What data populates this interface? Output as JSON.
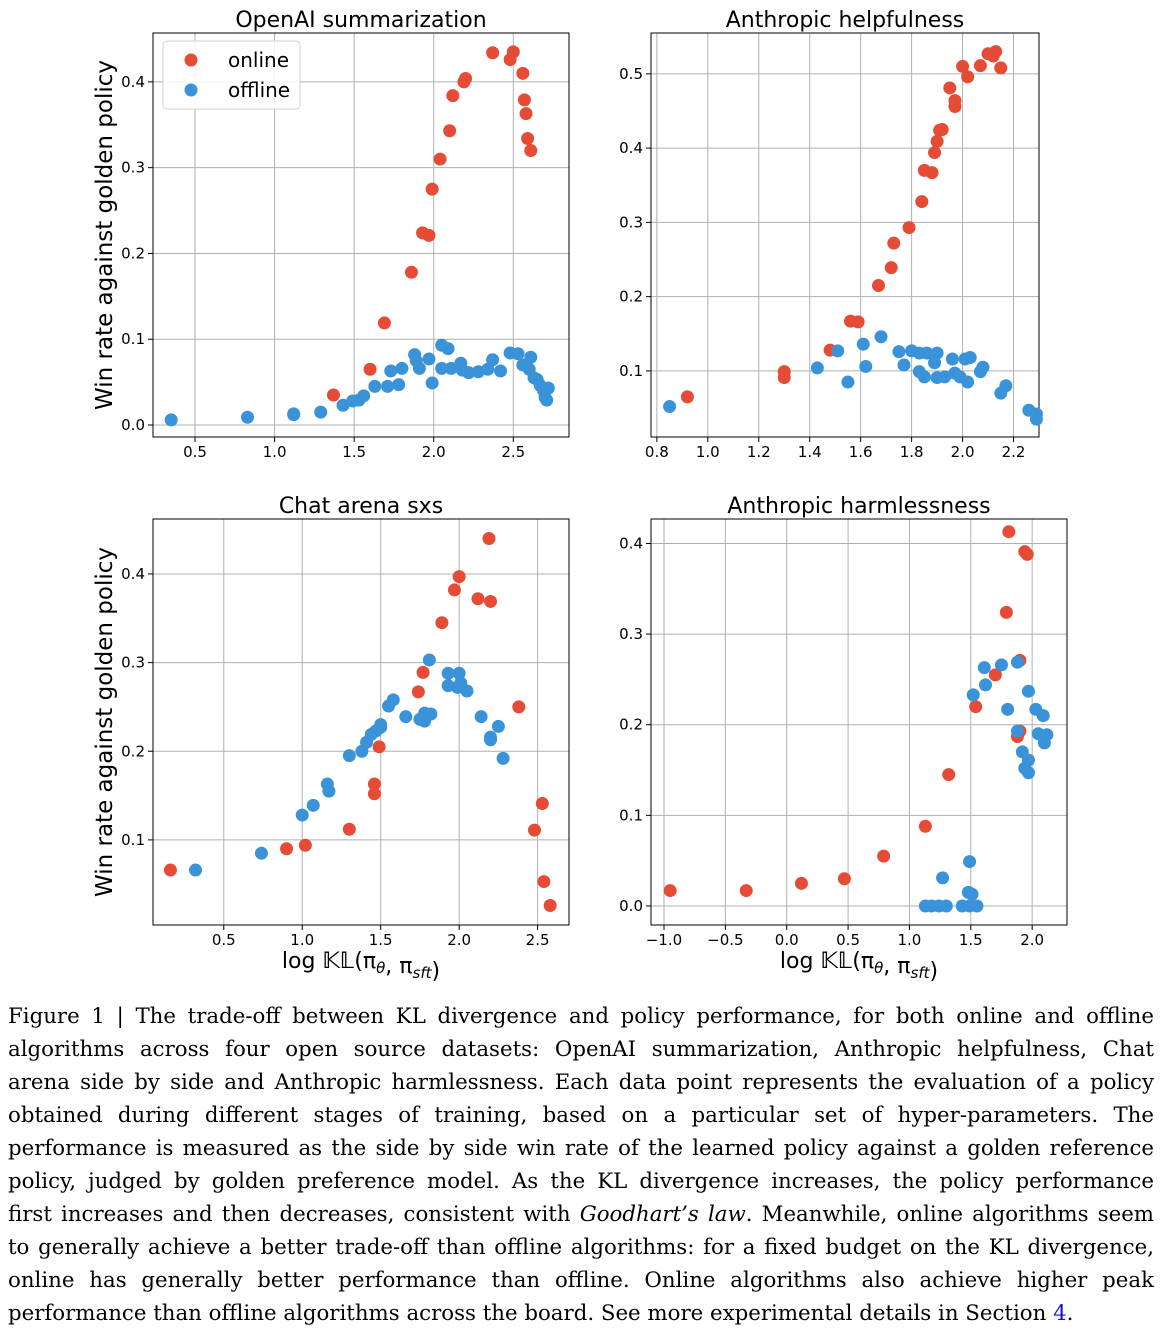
{
  "colors": {
    "online": "#e64b35",
    "offline": "#3a93d8",
    "grid": "#b0b0b0"
  },
  "legend": {
    "online": "online",
    "offline": "offline"
  },
  "chart_data": [
    {
      "type": "scatter",
      "title": "OpenAI summarization",
      "xlabel": "",
      "ylabel": "Win rate against golden policy",
      "xlim": [
        0.236,
        2.85
      ],
      "ylim": [
        -0.014,
        0.457
      ],
      "xticks": [
        0.5,
        1.0,
        1.5,
        2.0,
        2.5
      ],
      "yticks": [
        0.0,
        0.1,
        0.2,
        0.3,
        0.4
      ],
      "xtick_labels": [
        "0.5",
        "1.0",
        "1.5",
        "2.0",
        "2.5"
      ],
      "ytick_labels": [
        "0.0",
        "0.1",
        "0.2",
        "0.3",
        "0.4"
      ],
      "grid": true,
      "legend": "top-left",
      "series": [
        {
          "name": "online",
          "x": [
            1.37,
            1.6,
            1.69,
            1.86,
            1.93,
            1.97,
            1.99,
            2.04,
            2.1,
            2.12,
            2.19,
            2.2,
            2.37,
            2.48,
            2.5,
            2.56,
            2.57,
            2.58,
            2.59,
            2.61
          ],
          "y": [
            0.035,
            0.065,
            0.119,
            0.178,
            0.224,
            0.221,
            0.275,
            0.31,
            0.343,
            0.384,
            0.4,
            0.404,
            0.434,
            0.426,
            0.435,
            0.41,
            0.379,
            0.363,
            0.334,
            0.32
          ]
        },
        {
          "name": "offline",
          "x": [
            0.35,
            0.83,
            1.12,
            1.12,
            1.29,
            1.43,
            1.49,
            1.53,
            1.56,
            1.63,
            1.71,
            1.73,
            1.78,
            1.8,
            1.88,
            1.89,
            1.91,
            1.97,
            1.99,
            2.05,
            2.09,
            2.05,
            2.11,
            2.17,
            2.18,
            2.22,
            2.28,
            2.34,
            2.37,
            2.42,
            2.48,
            2.53,
            2.56,
            2.6,
            2.61,
            2.63,
            2.65,
            2.67,
            2.69,
            2.7,
            2.72,
            2.71
          ],
          "y": [
            0.006,
            0.009,
            0.013,
            0.012,
            0.015,
            0.023,
            0.028,
            0.029,
            0.034,
            0.045,
            0.045,
            0.063,
            0.047,
            0.066,
            0.082,
            0.075,
            0.066,
            0.077,
            0.049,
            0.093,
            0.089,
            0.066,
            0.066,
            0.072,
            0.064,
            0.061,
            0.062,
            0.065,
            0.076,
            0.063,
            0.084,
            0.083,
            0.07,
            0.065,
            0.079,
            0.055,
            0.053,
            0.046,
            0.04,
            0.032,
            0.043,
            0.029
          ]
        }
      ]
    },
    {
      "type": "scatter",
      "title": "Anthropic helpfulness",
      "xlabel": "",
      "ylabel": "",
      "xlim": [
        0.777,
        2.3
      ],
      "ylim": [
        0.011,
        0.555
      ],
      "xticks": [
        0.8,
        1.0,
        1.2,
        1.4,
        1.6,
        1.8,
        2.0,
        2.2
      ],
      "yticks": [
        0.1,
        0.2,
        0.3,
        0.4,
        0.5
      ],
      "xtick_labels": [
        "0.8",
        "1.0",
        "1.2",
        "1.4",
        "1.6",
        "1.8",
        "2.0",
        "2.2"
      ],
      "ytick_labels": [
        "0.1",
        "0.2",
        "0.3",
        "0.4",
        "0.5"
      ],
      "grid": true,
      "series": [
        {
          "name": "online",
          "x": [
            0.92,
            1.3,
            1.3,
            1.48,
            1.56,
            1.59,
            1.67,
            1.72,
            1.73,
            1.79,
            1.84,
            1.85,
            1.88,
            1.89,
            1.9,
            1.91,
            1.92,
            1.95,
            1.97,
            1.97,
            2.0,
            2.02,
            2.07,
            2.1,
            2.12,
            2.13,
            2.15
          ],
          "y": [
            0.065,
            0.099,
            0.091,
            0.128,
            0.167,
            0.166,
            0.215,
            0.239,
            0.272,
            0.293,
            0.328,
            0.37,
            0.367,
            0.394,
            0.409,
            0.424,
            0.425,
            0.481,
            0.464,
            0.456,
            0.51,
            0.496,
            0.511,
            0.527,
            0.524,
            0.53,
            0.508
          ]
        },
        {
          "name": "offline",
          "x": [
            0.85,
            1.43,
            1.51,
            1.55,
            1.61,
            1.62,
            1.68,
            1.75,
            1.77,
            1.8,
            1.83,
            1.83,
            1.85,
            1.86,
            1.9,
            1.89,
            1.9,
            1.93,
            1.96,
            1.97,
            1.99,
            2.01,
            2.03,
            2.02,
            2.07,
            2.08,
            2.15,
            2.17,
            2.26,
            2.29,
            2.29
          ],
          "y": [
            0.052,
            0.104,
            0.127,
            0.085,
            0.136,
            0.106,
            0.146,
            0.126,
            0.108,
            0.127,
            0.124,
            0.099,
            0.092,
            0.124,
            0.124,
            0.111,
            0.091,
            0.092,
            0.116,
            0.097,
            0.092,
            0.116,
            0.118,
            0.085,
            0.099,
            0.105,
            0.07,
            0.08,
            0.047,
            0.042,
            0.035
          ]
        }
      ]
    },
    {
      "type": "scatter",
      "title": "Chat arena sxs",
      "xlabel": "log 𝕂𝕃(π_θ, π_sft)",
      "ylabel": "Win rate against golden policy",
      "xlim": [
        0.049,
        2.7
      ],
      "ylim": [
        0.004,
        0.462
      ],
      "xticks": [
        0.5,
        1.0,
        1.5,
        2.0,
        2.5
      ],
      "yticks": [
        0.1,
        0.2,
        0.3,
        0.4
      ],
      "xtick_labels": [
        "0.5",
        "1.0",
        "1.5",
        "2.0",
        "2.5"
      ],
      "ytick_labels": [
        "0.1",
        "0.2",
        "0.3",
        "0.4"
      ],
      "grid": true,
      "series": [
        {
          "name": "online",
          "x": [
            0.16,
            0.9,
            1.02,
            1.3,
            1.46,
            1.46,
            1.49,
            1.74,
            1.77,
            1.89,
            1.97,
            2.0,
            2.12,
            2.2,
            2.19,
            2.38,
            2.53,
            2.48,
            2.54,
            2.58
          ],
          "y": [
            0.066,
            0.09,
            0.094,
            0.112,
            0.152,
            0.163,
            0.205,
            0.267,
            0.289,
            0.345,
            0.382,
            0.397,
            0.372,
            0.369,
            0.44,
            0.25,
            0.141,
            0.111,
            0.053,
            0.026
          ]
        },
        {
          "name": "offline",
          "x": [
            0.32,
            0.74,
            1.0,
            1.07,
            1.16,
            1.17,
            1.3,
            1.38,
            1.41,
            1.44,
            1.47,
            1.5,
            1.5,
            1.55,
            1.58,
            1.66,
            1.75,
            1.78,
            1.78,
            1.82,
            1.81,
            1.93,
            1.93,
            1.99,
            2.0,
            2.01,
            2.05,
            2.14,
            2.2,
            2.2,
            2.25,
            2.28
          ],
          "y": [
            0.066,
            0.085,
            0.128,
            0.139,
            0.163,
            0.155,
            0.195,
            0.2,
            0.21,
            0.219,
            0.223,
            0.227,
            0.23,
            0.251,
            0.258,
            0.239,
            0.236,
            0.243,
            0.234,
            0.242,
            0.303,
            0.288,
            0.274,
            0.272,
            0.288,
            0.277,
            0.268,
            0.239,
            0.216,
            0.213,
            0.228,
            0.192
          ]
        }
      ]
    },
    {
      "type": "scatter",
      "title": "Anthropic harmlessness",
      "xlabel": "log 𝕂𝕃(π_θ, π_sft)",
      "ylabel": "",
      "xlim": [
        -1.106,
        2.284
      ],
      "ylim": [
        -0.021,
        0.427
      ],
      "xticks": [
        -1.0,
        -0.5,
        0.0,
        0.5,
        1.0,
        1.5,
        2.0
      ],
      "yticks": [
        0.0,
        0.1,
        0.2,
        0.3,
        0.4
      ],
      "xtick_labels": [
        "−1.0",
        "−0.5",
        "0.0",
        "0.5",
        "1.0",
        "1.5",
        "2.0"
      ],
      "ytick_labels": [
        "0.0",
        "0.1",
        "0.2",
        "0.3",
        "0.4"
      ],
      "grid": true,
      "series": [
        {
          "name": "online",
          "x": [
            -0.95,
            -0.33,
            0.12,
            0.47,
            0.79,
            1.13,
            1.32,
            1.54,
            1.7,
            1.79,
            1.81,
            1.9,
            1.94,
            1.96,
            1.9,
            1.88
          ],
          "y": [
            0.017,
            0.017,
            0.025,
            0.03,
            0.055,
            0.088,
            0.145,
            0.22,
            0.255,
            0.324,
            0.413,
            0.271,
            0.391,
            0.388,
            0.193,
            0.187
          ]
        },
        {
          "name": "offline",
          "x": [
            1.49,
            1.27,
            1.13,
            1.18,
            1.24,
            1.3,
            1.43,
            1.48,
            1.51,
            1.49,
            1.55,
            1.52,
            1.61,
            1.62,
            1.75,
            1.8,
            1.88,
            1.97,
            1.88,
            1.92,
            1.94,
            1.97,
            1.97,
            2.03,
            2.09,
            2.05,
            2.12,
            2.1
          ],
          "y": [
            0.049,
            0.031,
            0.0,
            0.0,
            0.0,
            0.0,
            0.0,
            0.015,
            0.013,
            0.0,
            0.0,
            0.233,
            0.263,
            0.244,
            0.266,
            0.217,
            0.269,
            0.237,
            0.193,
            0.17,
            0.152,
            0.161,
            0.147,
            0.217,
            0.21,
            0.19,
            0.189,
            0.18
          ]
        }
      ]
    }
  ],
  "caption": {
    "lines": [
      [
        "Figure 1 | The trade-off between KL divergence and policy performance, for both online and offline"
      ],
      [
        "algorithms across four open source datasets: OpenAI summarization, Anthropic helpfulness, Chat"
      ],
      [
        "arena side by side and Anthropic harmlessness. Each data point represents the evaluation of a policy"
      ],
      [
        "obtained during different stages of training, based on a particular set of hyper-parameters.  The"
      ],
      [
        "performance is measured as the side by side win rate of the learned policy against a golden reference"
      ],
      [
        "policy, judged by golden preference model. As the KL divergence increases, the policy performance"
      ],
      [
        "first increases and then decreases, consistent with ",
        "Goodhart’s law",
        ". Meanwhile, online algorithms seem"
      ],
      [
        "to generally achieve a better trade-off than offline algorithms: for a fixed budget on the KL divergence,"
      ],
      [
        "online has generally better performance than offline. Online algorithms also achieve higher peak"
      ],
      [
        "performance than offline algorithms across the board. See more experimental details in Section ",
        "4",
        "."
      ]
    ]
  }
}
